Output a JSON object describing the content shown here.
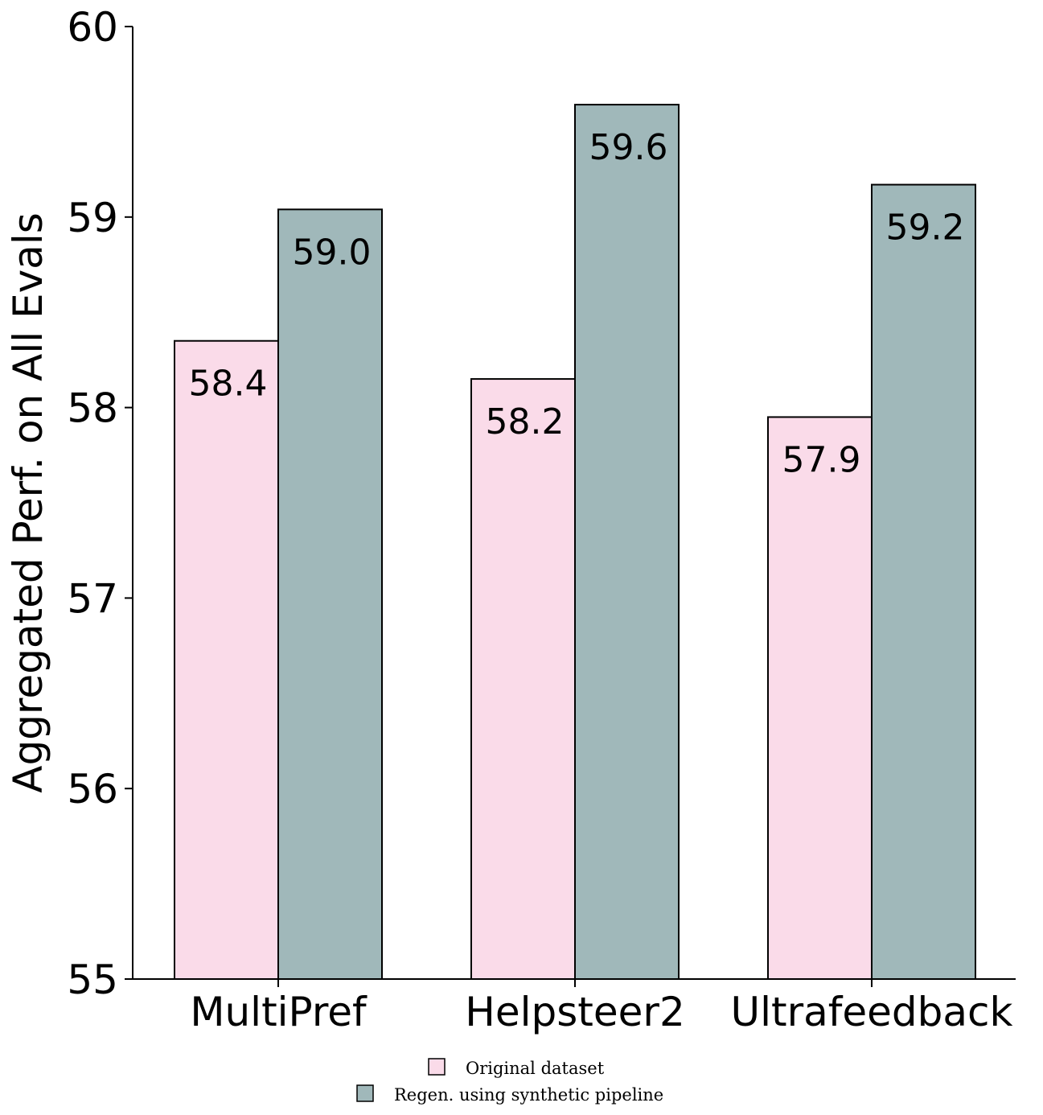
{
  "chart_data": {
    "type": "bar",
    "categories": [
      "MultiPref",
      "Helpsteer2",
      "Ultrafeedback"
    ],
    "series": [
      {
        "name": "Original dataset",
        "values": [
          58.35,
          58.15,
          57.95
        ],
        "labels": [
          "58.4",
          "58.2",
          "57.9"
        ],
        "color": "#fadbe9"
      },
      {
        "name": "Regen. using synthetic pipeline",
        "values": [
          59.04,
          59.59,
          59.17
        ],
        "labels": [
          "59.0",
          "59.6",
          "59.2"
        ],
        "color": "#a0b8ba"
      }
    ],
    "title": "",
    "xlabel": "",
    "ylabel": "Aggregated Perf. on All Evals",
    "ylim": [
      55,
      60
    ],
    "yticks": [
      "55",
      "56",
      "57",
      "58",
      "59",
      "60"
    ],
    "grid": false,
    "legend_position": "bottom-center"
  }
}
